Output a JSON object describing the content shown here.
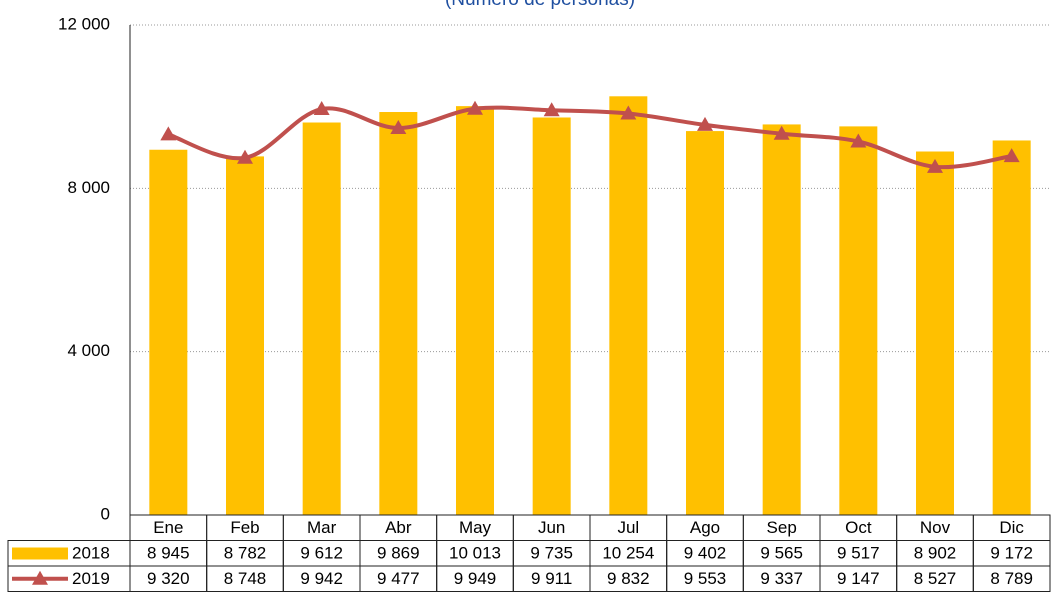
{
  "chart_data": {
    "type": "bar-line",
    "subtitle": "(Número de personas)",
    "categories": [
      "Ene",
      "Feb",
      "Mar",
      "Abr",
      "May",
      "Jun",
      "Jul",
      "Ago",
      "Sep",
      "Oct",
      "Nov",
      "Dic"
    ],
    "series": [
      {
        "name": "2018",
        "color": "#ffc000",
        "type": "bar",
        "values": [
          8945,
          8782,
          9612,
          9869,
          10013,
          9735,
          10254,
          9402,
          9565,
          9517,
          8902,
          9172
        ],
        "value_labels": [
          "8 945",
          "8 782",
          "9 612",
          "9 869",
          "10 013",
          "9 735",
          "10 254",
          "9 402",
          "9 565",
          "9 517",
          "8 902",
          "9 172"
        ]
      },
      {
        "name": "2019",
        "color": "#c0504d",
        "type": "line",
        "values": [
          9320,
          8748,
          9942,
          9477,
          9949,
          9911,
          9832,
          9553,
          9337,
          9147,
          8527,
          8789
        ],
        "value_labels": [
          "9 320",
          "8 748",
          "9 942",
          "9 477",
          "9 949",
          "9 911",
          "9 832",
          "9 553",
          "9 337",
          "9 147",
          "8 527",
          "8 789"
        ]
      }
    ],
    "ylim": [
      0,
      12000
    ],
    "yticks": [
      0,
      {
        "value": 4000,
        "label": "4 000"
      },
      {
        "value": 8000,
        "label": "8 000"
      },
      {
        "value": 12000,
        "label": "12 000"
      }
    ],
    "grid": true
  }
}
